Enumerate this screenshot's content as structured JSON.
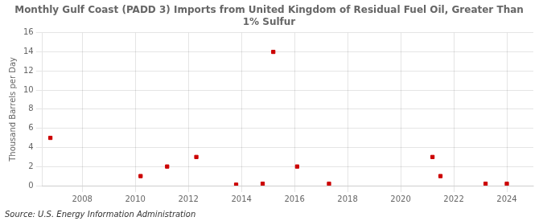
{
  "chart_data": {
    "type": "scatter",
    "title": "Monthly Gulf Coast (PADD 3) Imports from United Kingdom of Residual Fuel Oil, Greater Than\n1% Sulfur",
    "ylabel": "Thousand Barrels per Day",
    "annotations": [
      "Source: U.S. Energy Information Administration"
    ],
    "x": [
      2006.8,
      2010.2,
      2011.2,
      2012.3,
      2013.8,
      2014.8,
      2015.2,
      2016.1,
      2017.3,
      2021.2,
      2021.5,
      2023.2,
      2024.0
    ],
    "values": [
      5.0,
      1.0,
      2.0,
      3.0,
      0.1,
      0.2,
      14.0,
      2.0,
      0.2,
      3.0,
      1.0,
      0.2,
      0.2
    ],
    "color": "#cc0000",
    "marker": "square",
    "xlim": [
      2006.5,
      2025.0
    ],
    "ylim": [
      0,
      16
    ],
    "xticks": [
      2008,
      2010,
      2012,
      2014,
      2016,
      2018,
      2020,
      2022,
      2024
    ],
    "yticks": [
      0,
      2,
      4,
      6,
      8,
      10,
      12,
      14,
      16
    ],
    "grid": true
  }
}
